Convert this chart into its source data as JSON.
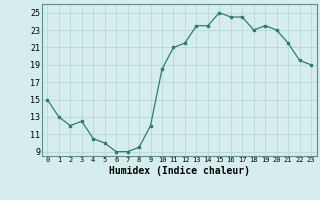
{
  "x": [
    0,
    1,
    2,
    3,
    4,
    5,
    6,
    7,
    8,
    9,
    10,
    11,
    12,
    13,
    14,
    15,
    16,
    17,
    18,
    19,
    20,
    21,
    22,
    23
  ],
  "y": [
    15,
    13,
    12,
    12.5,
    10.5,
    10,
    9,
    9,
    9.5,
    12,
    18.5,
    21,
    21.5,
    23.5,
    23.5,
    25,
    24.5,
    24.5,
    23,
    23.5,
    23,
    21.5,
    19.5,
    19
  ],
  "xlabel": "Humidex (Indice chaleur)",
  "ylim": [
    8.5,
    26
  ],
  "xlim": [
    -0.5,
    23.5
  ],
  "yticks": [
    9,
    11,
    13,
    15,
    17,
    19,
    21,
    23,
    25
  ],
  "xticks": [
    0,
    1,
    2,
    3,
    4,
    5,
    6,
    7,
    8,
    9,
    10,
    11,
    12,
    13,
    14,
    15,
    16,
    17,
    18,
    19,
    20,
    21,
    22,
    23
  ],
  "line_color": "#2e7d6e",
  "marker": "s",
  "marker_size": 2.0,
  "bg_color": "#d5eeed",
  "grid_color": "#b8d8d6",
  "line_width": 0.9,
  "tick_fontsize": 6,
  "xlabel_fontsize": 7
}
